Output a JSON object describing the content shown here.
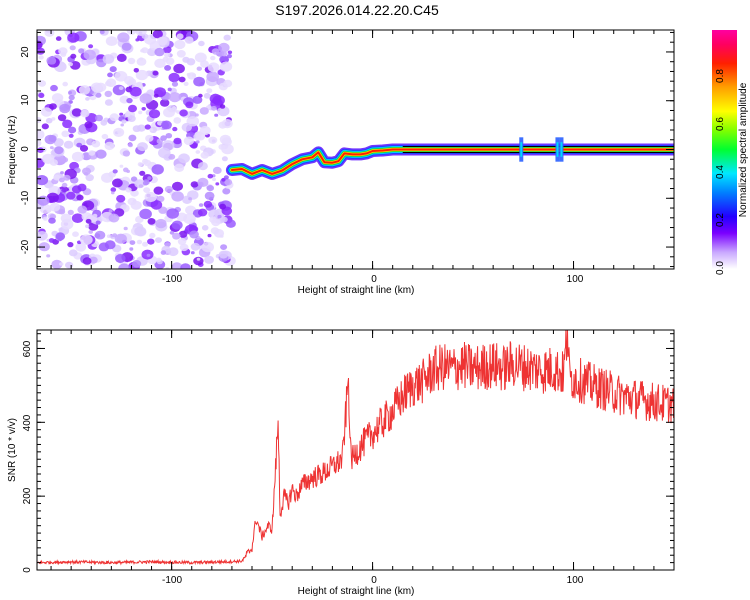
{
  "chart_data": [
    {
      "type": "heatmap",
      "title": "S197.2026.014.22.20.C45",
      "xlabel": "Height of straight line (km)",
      "ylabel": "Frequency (Hz)",
      "xlim": [
        -167,
        150
      ],
      "ylim": [
        -24.5,
        24.5
      ],
      "x_ticks": [
        "-100",
        "0",
        "100"
      ],
      "y_ticks": [
        "20",
        "10",
        "0",
        "-10",
        "-20"
      ],
      "noise_region_x": [
        -167,
        -70
      ],
      "signal_trace": {
        "x": [
          -70,
          -65,
          -60,
          -55,
          -50,
          -45,
          -40,
          -35,
          -30,
          -27,
          -24,
          -20,
          -17,
          -14,
          -10,
          -6,
          -3,
          0,
          5,
          10,
          15,
          60,
          74,
          90,
          94,
          100,
          150
        ],
        "y": [
          -4.2,
          -4.0,
          -5.0,
          -4.2,
          -5.0,
          -4.3,
          -3.0,
          -2.0,
          -1.6,
          -0.6,
          -2.6,
          -2.7,
          -2.4,
          -0.8,
          -1.0,
          -1.0,
          -0.8,
          -0.3,
          -0.2,
          0.0,
          0.0,
          0.0,
          0.0,
          0.0,
          0.0,
          0.0,
          0.0
        ]
      },
      "colorbar": {
        "label": "Normalized spectral amplitude",
        "ticks": [
          "0.0",
          "0.2",
          "0.4",
          "0.6",
          "0.8"
        ],
        "range": [
          0,
          0.98
        ]
      }
    },
    {
      "type": "line",
      "xlabel": "Height of straight line (km)",
      "ylabel": "SNR (10 * v/v)",
      "xlim": [
        -167,
        150
      ],
      "ylim": [
        0,
        650
      ],
      "x_ticks": [
        "-100",
        "0",
        "100"
      ],
      "y_ticks": [
        "0",
        "200",
        "400",
        "600"
      ],
      "line_color": "#ee3333",
      "series": [
        {
          "name": "SNR",
          "x": [
            -167,
            -150,
            -130,
            -110,
            -90,
            -75,
            -65,
            -60,
            -58,
            -55,
            -52,
            -50,
            -48,
            -47,
            -46,
            -44,
            -42,
            -40,
            -38,
            -35,
            -30,
            -25,
            -20,
            -15,
            -12,
            -11,
            -10,
            -8,
            -5,
            0,
            5,
            10,
            15,
            20,
            25,
            30,
            35,
            40,
            45,
            50,
            55,
            60,
            65,
            70,
            75,
            80,
            85,
            90,
            95,
            97,
            98,
            100,
            105,
            110,
            115,
            120,
            125,
            130,
            135,
            140,
            145,
            150
          ],
          "y": [
            20,
            22,
            20,
            22,
            20,
            22,
            24,
            60,
            140,
            90,
            120,
            110,
            300,
            405,
            150,
            200,
            180,
            220,
            200,
            230,
            250,
            260,
            280,
            300,
            520,
            320,
            300,
            320,
            340,
            370,
            400,
            430,
            470,
            500,
            510,
            540,
            550,
            545,
            555,
            545,
            550,
            555,
            545,
            560,
            550,
            545,
            540,
            545,
            530,
            650,
            520,
            520,
            510,
            500,
            490,
            480,
            470,
            465,
            460,
            455,
            450,
            450
          ]
        }
      ]
    }
  ]
}
